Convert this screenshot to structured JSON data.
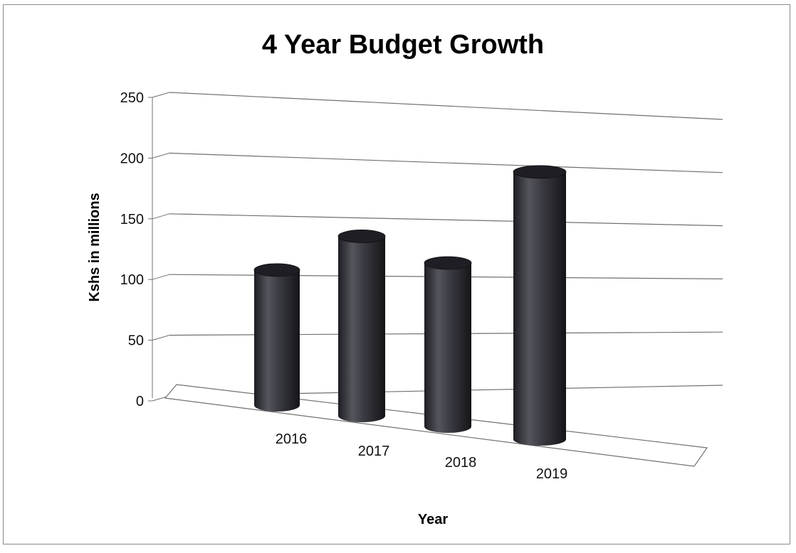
{
  "chart_data": {
    "type": "bar",
    "title": "4 Year Budget Growth",
    "xlabel": "Year",
    "ylabel": "Kshs in millions",
    "categories": [
      "2016",
      "2017",
      "2018",
      "2019"
    ],
    "values": [
      102,
      136,
      124,
      203
    ],
    "ylim": [
      0,
      250
    ],
    "yticks": [
      "0",
      "50",
      "100",
      "150",
      "200",
      "250"
    ],
    "grid": true,
    "legend": "none",
    "bar_shape": "3d-cylinder",
    "colors": {
      "bar": "#3a3a42",
      "grid": "#707070",
      "frame": "#8a8a8a"
    }
  }
}
